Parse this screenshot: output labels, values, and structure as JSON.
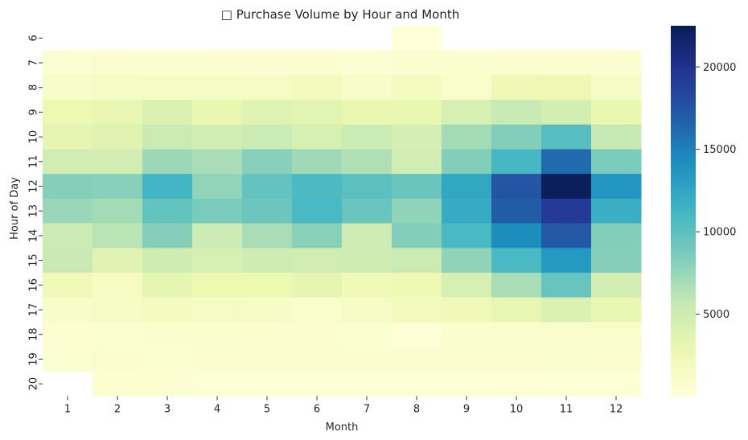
{
  "chart_data": {
    "type": "heatmap",
    "title": "□ Purchase Volume by Hour and Month",
    "xlabel": "Month",
    "ylabel": "Hour of Day",
    "x_categories": [
      "1",
      "2",
      "3",
      "4",
      "5",
      "6",
      "7",
      "8",
      "9",
      "10",
      "11",
      "12"
    ],
    "y_categories": [
      "6",
      "7",
      "8",
      "9",
      "10",
      "11",
      "12",
      "13",
      "14",
      "15",
      "16",
      "17",
      "18",
      "19",
      "20"
    ],
    "colormap": "YlGnBu",
    "value_range": [
      0,
      22500
    ],
    "colorbar_ticks": [
      5000,
      10000,
      15000,
      20000
    ],
    "colorbar_tick_labels": [
      "5000",
      "10000",
      "15000",
      "20000"
    ],
    "values": [
      [
        null,
        null,
        null,
        null,
        null,
        null,
        null,
        30,
        null,
        null,
        null,
        null
      ],
      [
        600,
        700,
        750,
        700,
        650,
        700,
        600,
        650,
        750,
        700,
        700,
        650
      ],
      [
        1200,
        1400,
        1500,
        1500,
        1600,
        2000,
        1200,
        1800,
        900,
        2500,
        2700,
        1500
      ],
      [
        2800,
        3200,
        4200,
        3000,
        3800,
        3600,
        3000,
        3000,
        4500,
        5500,
        4700,
        3000
      ],
      [
        3300,
        3700,
        5300,
        4800,
        5300,
        4500,
        5300,
        4600,
        7000,
        8300,
        10300,
        5600
      ],
      [
        4800,
        4900,
        7300,
        6800,
        8100,
        7200,
        6500,
        4800,
        8300,
        11000,
        16200,
        8600
      ],
      [
        8200,
        8100,
        11200,
        7700,
        9600,
        10700,
        10000,
        9400,
        12400,
        17500,
        22300,
        13700
      ],
      [
        7400,
        7000,
        9700,
        8700,
        9300,
        10900,
        9400,
        7800,
        12100,
        17000,
        19300,
        11800
      ],
      [
        5200,
        6100,
        8200,
        5200,
        6800,
        8000,
        5100,
        8300,
        10900,
        14300,
        17300,
        8300
      ],
      [
        5500,
        3800,
        5000,
        4500,
        5000,
        4800,
        5000,
        5300,
        7800,
        10900,
        13400,
        8200
      ],
      [
        2400,
        1600,
        3400,
        2800,
        2800,
        3300,
        2400,
        2600,
        4500,
        6800,
        9500,
        4700
      ],
      [
        1200,
        1300,
        1700,
        1500,
        1400,
        1000,
        1400,
        2100,
        2300,
        3100,
        4200,
        3000
      ],
      [
        500,
        600,
        800,
        800,
        700,
        700,
        600,
        300,
        800,
        800,
        900,
        900
      ],
      [
        600,
        650,
        600,
        700,
        700,
        700,
        700,
        700,
        700,
        700,
        800,
        700
      ],
      [
        null,
        500,
        500,
        450,
        450,
        450,
        450,
        400,
        450,
        350,
        400,
        450
      ]
    ]
  }
}
